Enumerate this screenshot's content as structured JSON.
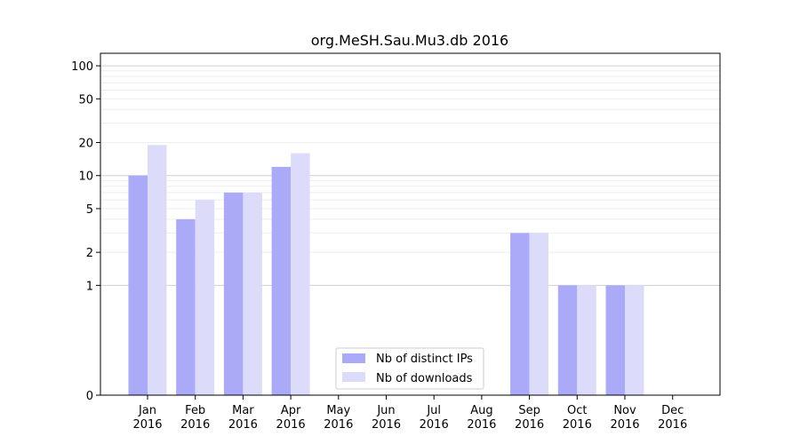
{
  "chart_data": {
    "type": "bar",
    "title": "org.MeSH.Sau.Mu3.db 2016",
    "xlabel": "",
    "ylabel": "",
    "yscale": "symlog",
    "ylim": [
      0,
      130
    ],
    "yticks": [
      0,
      1,
      2,
      5,
      10,
      20,
      50,
      100
    ],
    "ytick_labels": [
      "0",
      "1",
      "2",
      "5",
      "10",
      "20",
      "50",
      "100"
    ],
    "categories": [
      "Jan\n2016",
      "Feb\n2016",
      "Mar\n2016",
      "Apr\n2016",
      "May\n2016",
      "Jun\n2016",
      "Jul\n2016",
      "Aug\n2016",
      "Sep\n2016",
      "Oct\n2016",
      "Nov\n2016",
      "Dec\n2016"
    ],
    "series": [
      {
        "name": "Nb of distinct IPs",
        "color": "#aaaaf8",
        "values": [
          10,
          4,
          7,
          12,
          0,
          0,
          0,
          0,
          3,
          1,
          1,
          0
        ]
      },
      {
        "name": "Nb of downloads",
        "color": "#dcdcfa",
        "values": [
          19,
          6,
          7,
          16,
          0,
          0,
          0,
          0,
          3,
          1,
          1,
          0
        ]
      }
    ],
    "legend_position": "lower-center",
    "grid": "horizontal"
  }
}
